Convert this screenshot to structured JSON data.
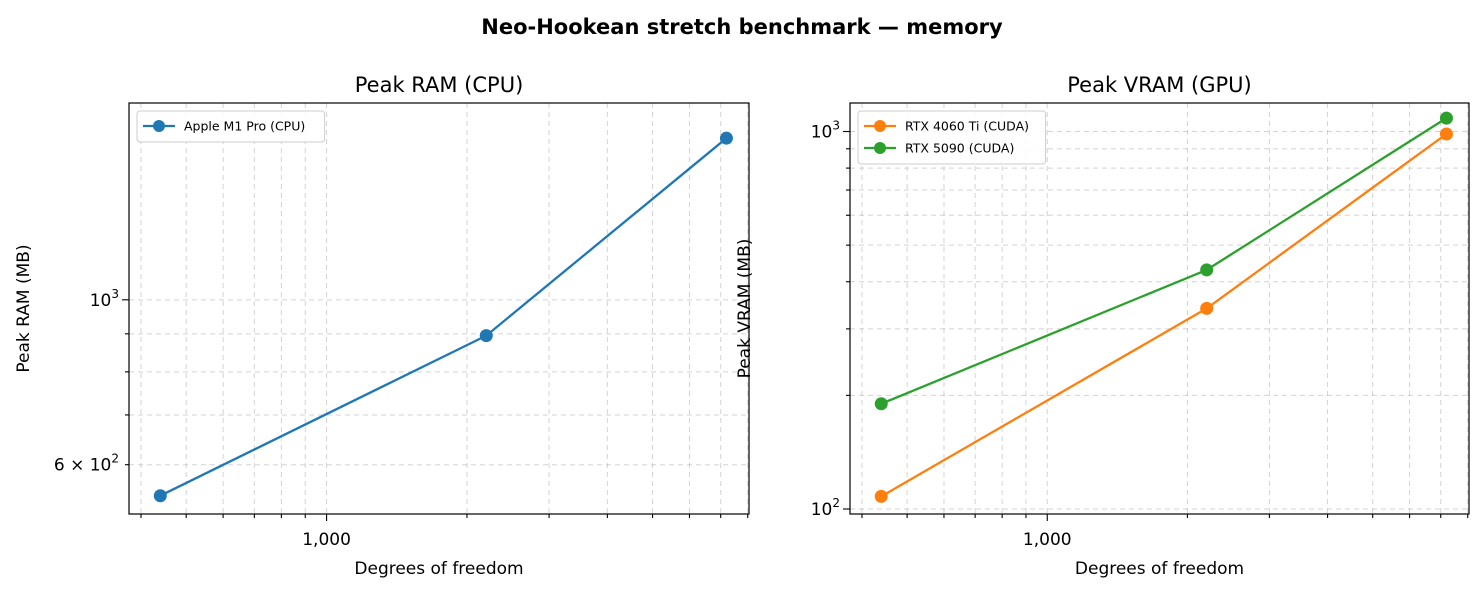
{
  "figure": {
    "title": "Neo-Hookean stretch benchmark — memory"
  },
  "chart_data": [
    {
      "type": "line",
      "title": "Peak RAM (CPU)",
      "xlabel": "Degrees of freedom",
      "ylabel": "Peak RAM (MB)",
      "xscale": "log",
      "yscale": "log",
      "xlim": [
        377,
        8050
      ],
      "ylim": [
        515,
        1840
      ],
      "xticks": [
        {
          "value": 1000,
          "label": "1,000"
        }
      ],
      "yticks": [
        {
          "value": 600,
          "label": "6 × 10",
          "exp": "2"
        },
        {
          "value": 1000,
          "label": "10",
          "exp": "3"
        }
      ],
      "grid": true,
      "legend_position": "upper-left",
      "series": [
        {
          "name": "Apple M1 Pro (CPU)",
          "color": "#1f77b4",
          "x": [
            440,
            2200,
            7200
          ],
          "y": [
            545,
            895,
            1650
          ]
        }
      ]
    },
    {
      "type": "line",
      "title": "Peak VRAM (GPU)",
      "xlabel": "Degrees of freedom",
      "ylabel": "Peak VRAM (MB)",
      "xscale": "log",
      "yscale": "log",
      "xlim": [
        377,
        8050
      ],
      "ylim": [
        97,
        1190
      ],
      "xticks": [
        {
          "value": 1000,
          "label": "1,000"
        }
      ],
      "yticks": [
        {
          "value": 100,
          "label": "10",
          "exp": "2"
        },
        {
          "value": 1000,
          "label": "10",
          "exp": "3"
        }
      ],
      "grid": true,
      "legend_position": "upper-left",
      "series": [
        {
          "name": "RTX 4060 Ti (CUDA)",
          "color": "#ff7f0e",
          "x": [
            440,
            2200,
            7200
          ],
          "y": [
            108,
            340,
            985
          ]
        },
        {
          "name": "RTX 5090 (CUDA)",
          "color": "#2ca02c",
          "x": [
            440,
            2200,
            7200
          ],
          "y": [
            190,
            430,
            1085
          ]
        }
      ]
    }
  ]
}
